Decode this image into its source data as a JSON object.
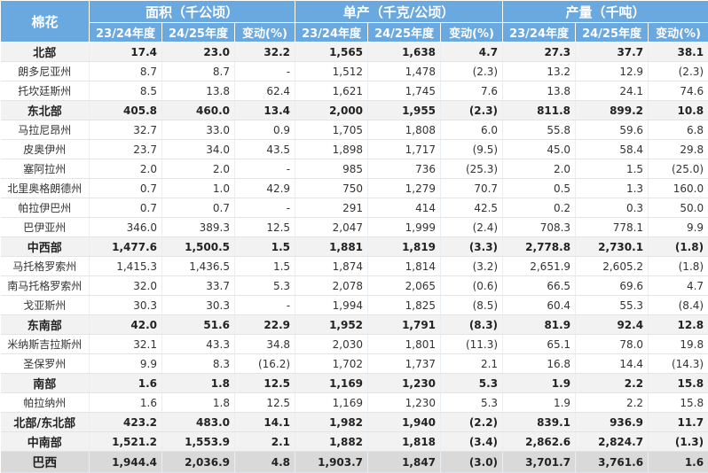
{
  "header": {
    "corner": "棉花",
    "groups": [
      "面积（千公顷）",
      "单产（千克/公顷）",
      "产量（千吨）"
    ],
    "sub": [
      "23/24年度",
      "24/25年度",
      "变动(%)"
    ]
  },
  "rows": [
    {
      "bold": true,
      "cells": [
        "北部",
        "17.4",
        "23.0",
        "32.2",
        "1,565",
        "1,638",
        "4.7",
        "27.3",
        "37.7",
        "38.1"
      ]
    },
    {
      "bold": false,
      "cells": [
        "朗多尼亚州",
        "8.7",
        "8.7",
        "-",
        "1,512",
        "1,478",
        "(2.3)",
        "13.2",
        "12.9",
        "(2.3)"
      ]
    },
    {
      "bold": false,
      "cells": [
        "托坎廷斯州",
        "8.5",
        "13.8",
        "62.4",
        "1,621",
        "1,745",
        "7.6",
        "13.8",
        "24.1",
        "74.6"
      ]
    },
    {
      "bold": true,
      "cells": [
        "东北部",
        "405.8",
        "460.0",
        "13.4",
        "2,000",
        "1,955",
        "(2.3)",
        "811.8",
        "899.2",
        "10.8"
      ]
    },
    {
      "bold": false,
      "cells": [
        "马拉尼昂州",
        "32.7",
        "33.0",
        "0.9",
        "1,705",
        "1,808",
        "6.0",
        "55.8",
        "59.6",
        "6.8"
      ]
    },
    {
      "bold": false,
      "cells": [
        "皮奥伊州",
        "23.7",
        "34.0",
        "43.5",
        "1,898",
        "1,717",
        "(9.5)",
        "45.0",
        "58.4",
        "29.8"
      ]
    },
    {
      "bold": false,
      "cells": [
        "塞阿拉州",
        "2.0",
        "2.0",
        "-",
        "985",
        "736",
        "(25.3)",
        "2.0",
        "1.5",
        "(25.0)"
      ]
    },
    {
      "bold": false,
      "cells": [
        "北里奥格朗德州",
        "0.7",
        "1.0",
        "42.9",
        "750",
        "1,279",
        "70.7",
        "0.5",
        "1.3",
        "160.0"
      ]
    },
    {
      "bold": false,
      "cells": [
        "帕拉伊巴州",
        "0.7",
        "0.7",
        "-",
        "291",
        "414",
        "42.5",
        "0.2",
        "0.3",
        "50.0"
      ]
    },
    {
      "bold": false,
      "cells": [
        "巴伊亚州",
        "346.0",
        "389.3",
        "12.5",
        "2,047",
        "1,999",
        "(2.4)",
        "708.3",
        "778.1",
        "9.9"
      ]
    },
    {
      "bold": true,
      "cells": [
        "中西部",
        "1,477.6",
        "1,500.5",
        "1.5",
        "1,881",
        "1,819",
        "(3.3)",
        "2,778.8",
        "2,730.1",
        "(1.8)"
      ]
    },
    {
      "bold": false,
      "cells": [
        "马托格罗索州",
        "1,415.3",
        "1,436.5",
        "1.5",
        "1,874",
        "1,814",
        "(3.2)",
        "2,651.9",
        "2,605.2",
        "(1.8)"
      ]
    },
    {
      "bold": false,
      "cells": [
        "南马托格罗索州",
        "32.0",
        "33.7",
        "5.3",
        "2,078",
        "2,065",
        "(0.6)",
        "66.5",
        "69.6",
        "4.7"
      ]
    },
    {
      "bold": false,
      "cells": [
        "戈亚斯州",
        "30.3",
        "30.3",
        "-",
        "1,994",
        "1,825",
        "(8.5)",
        "60.4",
        "55.3",
        "(8.4)"
      ]
    },
    {
      "bold": true,
      "cells": [
        "东南部",
        "42.0",
        "51.6",
        "22.9",
        "1,952",
        "1,791",
        "(8.3)",
        "81.9",
        "92.4",
        "12.8"
      ]
    },
    {
      "bold": false,
      "cells": [
        "米纳斯吉拉斯州",
        "32.1",
        "43.3",
        "34.8",
        "2,030",
        "1,801",
        "(11.3)",
        "65.1",
        "78.0",
        "19.8"
      ]
    },
    {
      "bold": false,
      "cells": [
        "圣保罗州",
        "9.9",
        "8.3",
        "(16.2)",
        "1,702",
        "1,737",
        "2.1",
        "16.8",
        "14.4",
        "(14.3)"
      ]
    },
    {
      "bold": true,
      "cells": [
        "南部",
        "1.6",
        "1.8",
        "12.5",
        "1,169",
        "1,230",
        "5.3",
        "1.9",
        "2.2",
        "15.8"
      ]
    },
    {
      "bold": false,
      "cells": [
        "帕拉纳州",
        "1.6",
        "1.8",
        "12.5",
        "1,169",
        "1,230",
        "5.3",
        "1.9",
        "2.2",
        "15.8"
      ]
    },
    {
      "bold": true,
      "cells": [
        "北部/东北部",
        "423.2",
        "483.0",
        "14.1",
        "1,982",
        "1,940",
        "(2.2)",
        "839.1",
        "936.9",
        "11.7"
      ]
    },
    {
      "bold": true,
      "cells": [
        "中南部",
        "1,521.2",
        "1,553.9",
        "2.1",
        "1,882",
        "1,818",
        "(3.4)",
        "2,862.6",
        "2,824.7",
        "(1.3)"
      ]
    }
  ],
  "total": {
    "cells": [
      "巴西",
      "1,944.4",
      "2,036.9",
      "4.8",
      "1,903.7",
      "1,847",
      "(3.0)",
      "3,701.7",
      "3,761.6",
      "1.6"
    ]
  }
}
